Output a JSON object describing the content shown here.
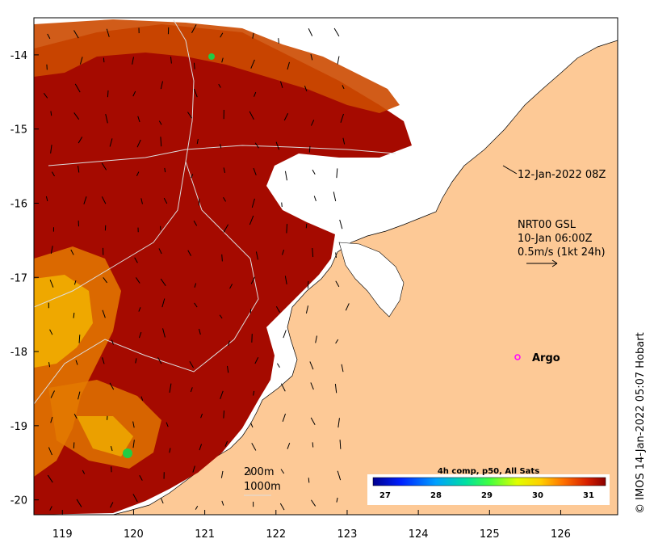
{
  "map": {
    "lon_range": [
      118.6,
      126.8
    ],
    "lat_range": [
      -20.2,
      -13.5
    ],
    "x_ticks": [
      119,
      120,
      121,
      122,
      123,
      124,
      125,
      126
    ],
    "y_ticks": [
      -14,
      -15,
      -16,
      -17,
      -18,
      -19,
      -20
    ],
    "x_tick_labels": [
      "119",
      "120",
      "121",
      "122",
      "123",
      "124",
      "125",
      "126"
    ],
    "y_tick_labels": [
      "-14",
      "-15",
      "-16",
      "-17",
      "-18",
      "-19",
      "-20"
    ]
  },
  "annotations": {
    "timestamp": "12-Jan-2022 08Z",
    "current_source": "NRT00 GSL",
    "current_time": "10-Jan 06:00Z",
    "scale_label": "0.5m/s (1kt 24h)",
    "argo_label": "Argo",
    "isobath_200": "200m",
    "isobath_1000": "1000m",
    "credit": "© IMOS 14-Jan-2022 05:07 Hobart"
  },
  "colorbar": {
    "title": "4h comp, p50, All Sats",
    "ticks": [
      "27",
      "28",
      "29",
      "30",
      "31"
    ]
  },
  "colors": {
    "land": "#fdc996",
    "sst_hot": "#a50a00",
    "sst_warm": "#cc4a00",
    "sst_mid": "#e47a00",
    "sst_cool": "#f2b400",
    "argo": "#ff00ff"
  }
}
